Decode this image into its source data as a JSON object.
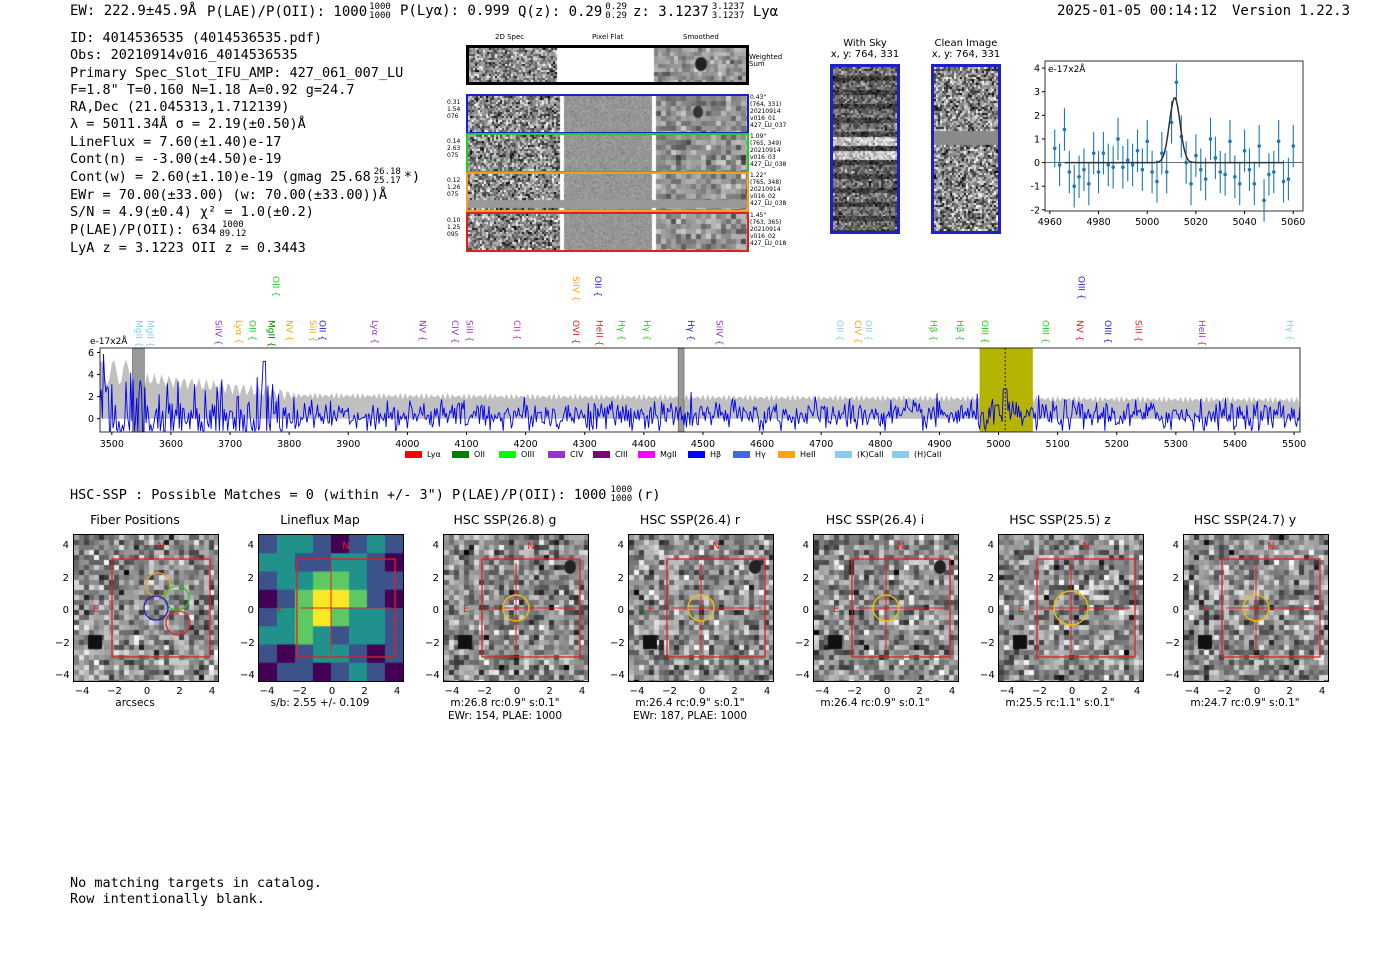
{
  "header": {
    "ew": "EW: 222.9±45.9Å",
    "plae_label": "P(LAE)/P(OII): 1000",
    "plae_hi": "1000",
    "plae_lo": "1000",
    "plya": "P(Lyα): 0.999",
    "qz_label": "Q(z): 0.29",
    "qz_hi": "0.29",
    "qz_lo": "0.29",
    "z_label": "z: 3.1237",
    "z_hi": "3.1237",
    "z_lo": "3.1237",
    "z_line": "Lyα",
    "datetime": "2025-01-05 00:14:12",
    "version": "Version 1.22.3"
  },
  "info": {
    "id": "ID: 4014536535 (4014536535.pdf)",
    "obs": "Obs: 20210914v016_4014536535",
    "primary": "Primary Spec_Slot_IFU_AMP: 427_061_007_LU",
    "fiber": "F=1.8\"  T=0.160  N=1.18  A=0.92  g=24.7",
    "radec": "RA,Dec (21.045313,1.712139)",
    "lambda": "λ = 5011.34Å  σ = 2.19(±0.50)Å",
    "lineflux": "LineFlux = 7.60(±1.40)e-17",
    "contn": "Cont(n) = -3.00(±4.50)e-19",
    "contw": "Cont(w) = 2.60(±1.10)e-19 (gmag 25.68",
    "gmag_hi": "26.18",
    "gmag_lo": "25.17",
    "contw_end": "*)",
    "ewr": "EWr = 70.00(±33.00) (w: 70.00(±33.00))Å",
    "sn": "S/N = 4.9(±0.4)  χ² = 1.0(±0.2)",
    "plae": "P(LAE)/P(OII): 634",
    "plae2_hi": "1000",
    "plae2_lo": "89.12",
    "lya": "LyA z = 3.1223  OII z = 0.3443"
  },
  "spec2d": {
    "headers": [
      "2D Spec",
      "Pixel Flat",
      "Smoothed"
    ],
    "weighted": "Weighted\nSum",
    "rows": [
      {
        "left": "0.31\n1.54\n076",
        "right": "0.43\"\n(764, 331)\n20210914\nv016_01\n427_LU_037",
        "color": "#1f1fc8"
      },
      {
        "left": "0.14\n2.63\n075",
        "right": "1.09\"\n(765, 349)\n20210914\nv016_03\n427_LU_038",
        "color": "#22cc22"
      },
      {
        "left": "0.12\n1.26\n075",
        "right": "1.22\"\n(765, 348)\n20210914\nv016_02\n427_LU_038",
        "color": "#f0a020"
      },
      {
        "left": "0.10\n1.25\n095",
        "right": "1.45\"\n(763, 365)\n20210914\nv016_02\n427_LU_018",
        "color": "#e02020"
      }
    ]
  },
  "cutouts": {
    "withsky_title": "With Sky",
    "withsky_xy": "x, y: 764, 331",
    "clean_title": "Clean Image",
    "clean_xy": "x, y: 764, 331"
  },
  "chart_data": [
    {
      "type": "line",
      "name": "line-fit",
      "title": "",
      "ylabel_unit": "e-17x2Å",
      "xlim": [
        4958,
        5064
      ],
      "ylim": [
        -2.05,
        4.3
      ],
      "xticks": [
        4960,
        4980,
        5000,
        5020,
        5040,
        5060
      ],
      "yticks": [
        -2,
        -1,
        0,
        1,
        2,
        3,
        4
      ],
      "x": [
        4962,
        4964,
        4966,
        4968,
        4970,
        4972,
        4974,
        4976,
        4978,
        4980,
        4982,
        4984,
        4986,
        4988,
        4990,
        4992,
        4994,
        4996,
        4998,
        5000,
        5002,
        5004,
        5006,
        5008,
        5010,
        5012,
        5014,
        5016,
        5018,
        5020,
        5022,
        5024,
        5026,
        5028,
        5030,
        5032,
        5034,
        5036,
        5038,
        5040,
        5042,
        5044,
        5046,
        5048,
        5050,
        5052,
        5054,
        5056,
        5058,
        5060
      ],
      "y": [
        0.6,
        -0.1,
        1.4,
        -0.4,
        -1.0,
        -0.6,
        -0.3,
        -0.9,
        0.4,
        -0.4,
        0.4,
        -0.1,
        -0.2,
        1.0,
        -0.2,
        0.1,
        -0.1,
        0.5,
        -0.3,
        0.9,
        -0.4,
        -0.8,
        0.4,
        -0.4,
        1.7,
        3.4,
        1.1,
        0.0,
        -0.9,
        0.3,
        -0.3,
        -0.7,
        1.0,
        0.2,
        -0.4,
        -0.5,
        0.9,
        -0.6,
        -0.9,
        0.5,
        -0.3,
        -0.9,
        0.7,
        -1.6,
        -0.5,
        -0.4,
        0.9,
        -0.8,
        -0.7,
        0.7
      ],
      "yerr": [
        0.8,
        0.9,
        0.9,
        0.9,
        0.9,
        0.9,
        0.9,
        0.9,
        0.9,
        0.9,
        0.9,
        0.9,
        0.9,
        0.9,
        0.9,
        0.9,
        0.9,
        0.9,
        0.9,
        0.9,
        0.9,
        0.9,
        0.9,
        0.9,
        0.9,
        0.8,
        0.9,
        0.9,
        0.9,
        0.9,
        0.9,
        0.9,
        0.9,
        0.9,
        0.9,
        0.9,
        0.9,
        0.9,
        0.9,
        0.9,
        0.9,
        0.9,
        0.9,
        0.9,
        0.9,
        0.9,
        0.9,
        0.9,
        0.9,
        0.9
      ],
      "fit": {
        "center": 5011.3,
        "amp": 2.75,
        "sigma": 2.19,
        "baseline": 0.0
      }
    },
    {
      "type": "line",
      "name": "full-spectrum",
      "title": "",
      "ylabel_unit": "e-17x2Å",
      "xlim": [
        3480,
        5510
      ],
      "ylim": [
        -1.2,
        6.4
      ],
      "xticks": [
        3500,
        3600,
        3700,
        3800,
        3900,
        4000,
        4100,
        4200,
        4300,
        4400,
        4500,
        4600,
        4700,
        4800,
        4900,
        5000,
        5100,
        5200,
        5300,
        5400,
        5500
      ],
      "yticks": [
        0,
        2,
        4,
        6
      ],
      "highlight_range": [
        4968,
        5058
      ],
      "marker_line": 5011.3,
      "masked_bands": [
        [
          3535,
          3555
        ],
        [
          4458,
          4468
        ]
      ],
      "line_labels": [
        {
          "label": "MgII",
          "x": 3536,
          "row": 2,
          "color": "#87ceeb"
        },
        {
          "label": "MgII",
          "x": 3555,
          "row": 2,
          "color": "#87ceeb"
        },
        {
          "label": "SiIV",
          "x": 3670,
          "row": 3,
          "color": "#9932cc"
        },
        {
          "label": "Lyα",
          "x": 3705,
          "row": 3,
          "color": "#ffa500"
        },
        {
          "label": "OII",
          "x": 3728,
          "row": 3,
          "color": "#22cc22"
        },
        {
          "label": "MgII",
          "x": 3760,
          "row": 3,
          "color": "#008000"
        },
        {
          "label": "OII",
          "x": 3768,
          "row": 1,
          "color": "#22cc22"
        },
        {
          "label": "NV",
          "x": 3790,
          "row": 3,
          "color": "#ffa500"
        },
        {
          "label": "OII",
          "x": 3846,
          "row": 3,
          "color": "#1f1fc8"
        },
        {
          "label": "SiII",
          "x": 3830,
          "row": 3,
          "color": "#ffa500"
        },
        {
          "label": "Lyα",
          "x": 3935,
          "row": 3,
          "color": "#9932cc"
        },
        {
          "label": "NV",
          "x": 4015,
          "row": 3,
          "color": "#9932cc"
        },
        {
          "label": "CIV",
          "x": 4070,
          "row": 3,
          "color": "#9932cc"
        },
        {
          "label": "SiII",
          "x": 4095,
          "row": 3,
          "color": "#9932cc"
        },
        {
          "label": "CII",
          "x": 4175,
          "row": 3,
          "color": "#cc33cc"
        },
        {
          "label": "SiIV",
          "x": 4275,
          "row": 1,
          "color": "#ffa500"
        },
        {
          "label": "OVI",
          "x": 4275,
          "row": 3,
          "color": "#e02020"
        },
        {
          "label": "OII",
          "x": 4312,
          "row": 1,
          "color": "#1f1fc8"
        },
        {
          "label": "HeII",
          "x": 4315,
          "row": 3,
          "color": "#e02020"
        },
        {
          "label": "Hγ",
          "x": 4352,
          "row": 3,
          "color": "#22cc22"
        },
        {
          "label": "Hγ",
          "x": 4395,
          "row": 3,
          "color": "#22cc22"
        },
        {
          "label": "Hγ",
          "x": 4470,
          "row": 3,
          "color": "#1f1fc8"
        },
        {
          "label": "SiIV",
          "x": 4518,
          "row": 3,
          "color": "#9932cc"
        },
        {
          "label": "OII",
          "x": 4722,
          "row": 3,
          "color": "#87ceeb"
        },
        {
          "label": "CIV",
          "x": 4752,
          "row": 3,
          "color": "#ffa500"
        },
        {
          "label": "OII",
          "x": 4770,
          "row": 3,
          "color": "#87ceeb"
        },
        {
          "label": "Hβ",
          "x": 4880,
          "row": 3,
          "color": "#22cc22"
        },
        {
          "label": "Hβ",
          "x": 4925,
          "row": 3,
          "color": "#22cc22"
        },
        {
          "label": "OIII",
          "x": 4967,
          "row": 3,
          "color": "#22cc22"
        },
        {
          "label": "OIII",
          "x": 5069,
          "row": 3,
          "color": "#22cc22"
        },
        {
          "label": "OIII",
          "x": 5130,
          "row": 1,
          "color": "#1f1fc8"
        },
        {
          "label": "NV",
          "x": 5128,
          "row": 3,
          "color": "#e02020"
        },
        {
          "label": "OIII",
          "x": 5175,
          "row": 3,
          "color": "#1f1fc8"
        },
        {
          "label": "SiII",
          "x": 5227,
          "row": 3,
          "color": "#e02020"
        },
        {
          "label": "HeII",
          "x": 5334,
          "row": 3,
          "color": "#9932cc"
        },
        {
          "label": "Hγ",
          "x": 5483,
          "row": 3,
          "color": "#87ceeb"
        }
      ],
      "legend": [
        {
          "label": "Lyα",
          "color": "#ff0000"
        },
        {
          "label": "OII",
          "color": "#008000"
        },
        {
          "label": "OIII",
          "color": "#00ff00"
        },
        {
          "label": "CIV",
          "color": "#9932cc"
        },
        {
          "label": "CIII",
          "color": "#800080"
        },
        {
          "label": "MgII",
          "color": "#ff00ff"
        },
        {
          "label": "Hβ",
          "color": "#0000ff"
        },
        {
          "label": "Hγ",
          "color": "#4169e1"
        },
        {
          "label": "HeII",
          "color": "#ffa500"
        },
        {
          "label": "(K)CaII",
          "color": "#87ceeb"
        },
        {
          "label": "(H)CaII",
          "color": "#87ceeb"
        }
      ]
    }
  ],
  "hsc": {
    "line_text": "HSC-SSP : Possible Matches = 0 (within +/- 3\")  P(LAE)/P(OII): 1000",
    "frac_hi": "1000",
    "frac_lo": "1000",
    "line_end": "(r)",
    "axis_ticks": [
      "4",
      "2",
      "0",
      "−2",
      "−4"
    ],
    "x_ticks": [
      "−4",
      "−2",
      "0",
      "2",
      "4"
    ],
    "compass_n": "N",
    "compass_e": "E",
    "panels": [
      {
        "title": "Fiber Positions",
        "caption1": "arcsecs",
        "caption2": ""
      },
      {
        "title": "Lineflux Map",
        "caption1": "s/b: 2.55 +/- 0.109",
        "caption2": ""
      },
      {
        "title": "HSC SSP(26.8) g",
        "caption1": "m:26.8 rc:0.9\"  s:0.1\"",
        "caption2": "EWr: 154, PLAE: 1000"
      },
      {
        "title": "HSC SSP(26.4) r",
        "caption1": "m:26.4 rc:0.9\"  s:0.1\"",
        "caption2": "EWr: 187, PLAE: 1000"
      },
      {
        "title": "HSC SSP(26.4) i",
        "caption1": "m:26.4 rc:0.9\"  s:0.1\"",
        "caption2": ""
      },
      {
        "title": "HSC SSP(25.5) z",
        "caption1": "m:25.5 rc:1.1\"  s:0.1\"",
        "caption2": ""
      },
      {
        "title": "HSC SSP(24.7) y",
        "caption1": "m:24.7 rc:0.9\"  s:0.1\"",
        "caption2": ""
      }
    ]
  },
  "footer": {
    "line1": "No matching targets in catalog.",
    "line2": "Row intentionally blank."
  }
}
